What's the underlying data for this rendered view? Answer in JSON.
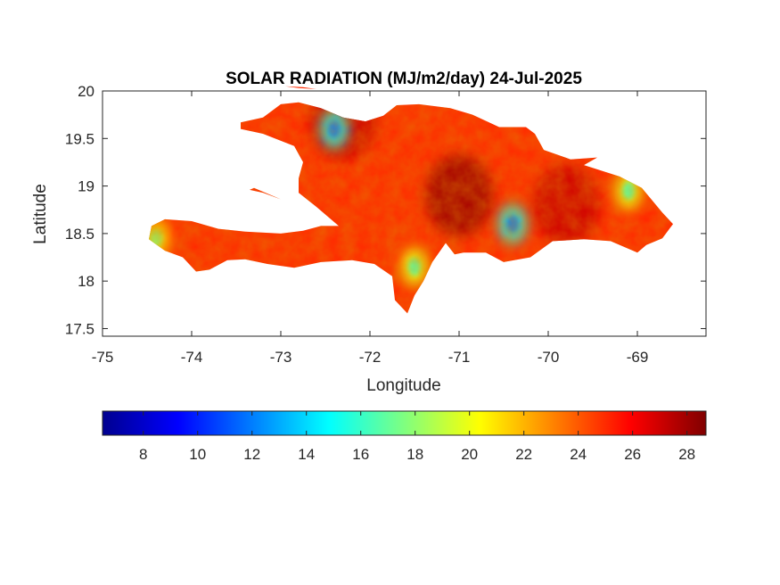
{
  "chart_data": {
    "type": "heatmap",
    "title": "SOLAR RADIATION (MJ/m2/day) 24-Jul-2025",
    "xlabel": "Longitude",
    "ylabel": "Latitude",
    "xlim": [
      -75,
      -68.23
    ],
    "ylim": [
      17.42,
      20
    ],
    "x_ticks": [
      "-75",
      "-74",
      "-73",
      "-72",
      "-71",
      "-70",
      "-69"
    ],
    "x_tick_values": [
      -75,
      -74,
      -73,
      -72,
      -71,
      -70,
      -69
    ],
    "y_ticks": [
      "20",
      "19.5",
      "19",
      "18.5",
      "18",
      "17.5"
    ],
    "y_tick_values": [
      20,
      19.5,
      19,
      18.5,
      18,
      17.5
    ],
    "colormap": "jet",
    "colorbar": {
      "range": [
        6.5,
        28.7
      ],
      "ticks": [
        "8",
        "10",
        "12",
        "14",
        "16",
        "18",
        "20",
        "22",
        "24",
        "26",
        "28"
      ],
      "tick_values": [
        8,
        10,
        12,
        14,
        16,
        18,
        20,
        22,
        24,
        26,
        28
      ],
      "placement": "bottom"
    },
    "region": "Hispaniola (Haiti and Dominican Republic)",
    "value_range_observed": [
      9,
      28
    ],
    "typical_value": 25,
    "low_areas": [
      {
        "lon": -70.4,
        "lat": 18.6,
        "value": 12
      },
      {
        "lon": -72.4,
        "lat": 19.6,
        "value": 12
      },
      {
        "lon": -74.4,
        "lat": 18.45,
        "value": 18
      },
      {
        "lon": -71.5,
        "lat": 18.15,
        "value": 17
      },
      {
        "lon": -69.1,
        "lat": 18.95,
        "value": 17
      }
    ],
    "high_areas": [
      {
        "lon": -71.0,
        "lat": 18.9,
        "value": 28
      },
      {
        "lon": -72.3,
        "lat": 19.7,
        "value": 27
      },
      {
        "lon": -69.8,
        "lat": 18.8,
        "value": 27
      }
    ]
  }
}
